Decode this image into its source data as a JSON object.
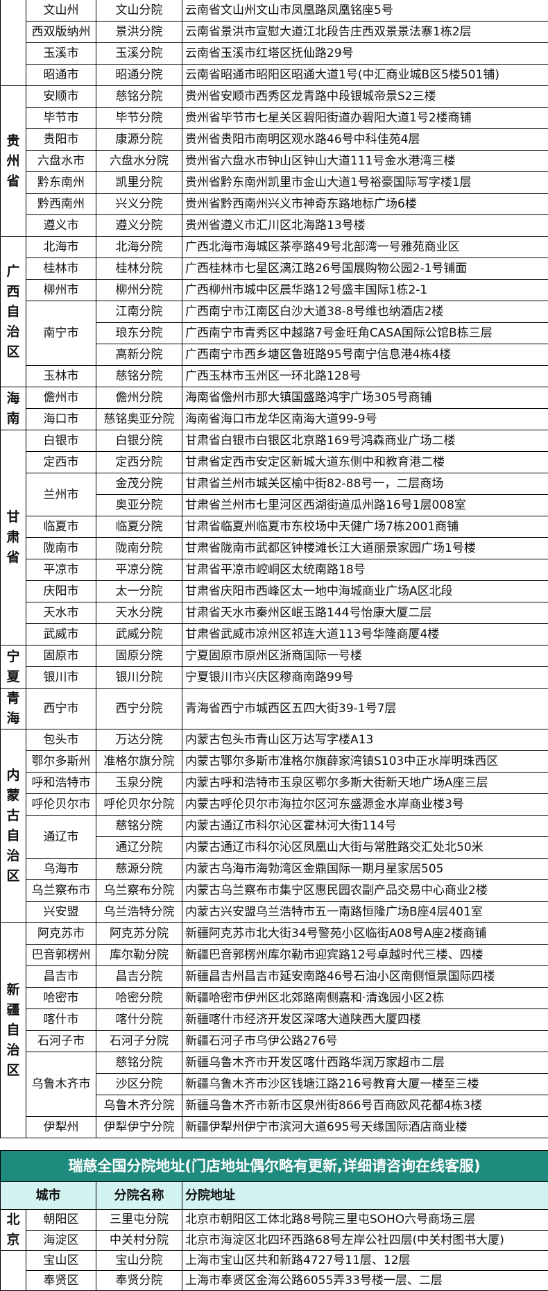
{
  "table1": {
    "sections": [
      {
        "province": "",
        "groups": [
          {
            "city": "文山州",
            "branches": [
              {
                "name": "文山分院",
                "address": "云南省文山州文山市凤凰路凤凰铭座5号"
              }
            ]
          },
          {
            "city": "西双版纳州",
            "branches": [
              {
                "name": "景洪分院",
                "address": "云南省景洪市宣慰大道江北段告庄西双景景法寨1栋2层"
              }
            ]
          },
          {
            "city": "玉溪市",
            "branches": [
              {
                "name": "玉溪分院",
                "address": "云南省玉溪市红塔区抚仙路29号"
              }
            ]
          },
          {
            "city": "昭通市",
            "branches": [
              {
                "name": "昭通分院",
                "address": "云南省昭通市昭阳区昭通大道1号(中汇商业城B区5楼501铺)"
              }
            ]
          }
        ]
      },
      {
        "province": "贵州省",
        "groups": [
          {
            "city": "安顺市",
            "branches": [
              {
                "name": "慈铭分院",
                "address": "贵州省安顺市西秀区龙青路中段银城帝景S2三楼"
              }
            ]
          },
          {
            "city": "毕节市",
            "branches": [
              {
                "name": "毕节分院",
                "address": "贵州省毕节市七星关区碧阳街道办碧阳大道1号2楼商铺"
              }
            ]
          },
          {
            "city": "贵阳市",
            "branches": [
              {
                "name": "康源分院",
                "address": "贵州省贵阳市南明区观水路46号中科佳苑4层"
              }
            ]
          },
          {
            "city": "六盘水市",
            "branches": [
              {
                "name": "六盘水分院",
                "address": "贵州省六盘水市钟山区钟山大道111号金水港湾三楼"
              }
            ]
          },
          {
            "city": "黔东南州",
            "branches": [
              {
                "name": "凯里分院",
                "address": "贵州省黔东南州凯里市金山大道1号裕豪国际写字楼1层"
              }
            ]
          },
          {
            "city": "黔西南州",
            "branches": [
              {
                "name": "兴义分院",
                "address": "贵州省黔西南州兴义市神奇东路地标广场6楼"
              }
            ]
          },
          {
            "city": "遵义市",
            "branches": [
              {
                "name": "遵义分院",
                "address": "贵州省遵义市汇川区北海路13号楼"
              }
            ]
          }
        ]
      },
      {
        "province": "广西自治区",
        "groups": [
          {
            "city": "北海市",
            "branches": [
              {
                "name": "北海分院",
                "address": "广西北海市海城区茶亭路49号北部湾一号雅苑商业区"
              }
            ]
          },
          {
            "city": "桂林市",
            "branches": [
              {
                "name": "桂林分院",
                "address": "广西桂林市七星区漓江路26号国展购物公园2-1号铺面"
              }
            ]
          },
          {
            "city": "柳州市",
            "branches": [
              {
                "name": "柳州分院",
                "address": "广西柳州市城中区晨华路12号盛丰国际1栋2-1"
              }
            ]
          },
          {
            "city": "南宁市",
            "branches": [
              {
                "name": "江南分院",
                "address": "广西南宁市江南区白沙大道38-8号维也纳酒店2楼"
              },
              {
                "name": "琅东分院",
                "address": "广西南宁市青秀区中越路7号金旺角CASA国际公馆B栋三层"
              },
              {
                "name": "高新分院",
                "address": "广西南宁市西乡塘区鲁班路95号南宁信息港4栋4楼"
              }
            ]
          },
          {
            "city": "玉林市",
            "branches": [
              {
                "name": "慈铭分院",
                "address": "广西玉林市玉州区一环北路128号"
              }
            ]
          }
        ]
      },
      {
        "province": "海南",
        "groups": [
          {
            "city": "儋州市",
            "branches": [
              {
                "name": "儋州分院",
                "address": "海南省儋州市那大镇国盛路鸿宇广场305号商铺"
              }
            ]
          },
          {
            "city": "海口市",
            "branches": [
              {
                "name": "慈铭奥亚分院",
                "address": "海南省海口市龙华区南海大道99-9号"
              }
            ]
          }
        ]
      },
      {
        "province": "甘肃省",
        "groups": [
          {
            "city": "白银市",
            "branches": [
              {
                "name": "白银分院",
                "address": "甘肃省白银市白银区北京路169号鸿森商业广场二楼"
              }
            ]
          },
          {
            "city": "定西市",
            "branches": [
              {
                "name": "定西分院",
                "address": "甘肃省定西市安定区新城大道东侧中和教育港二楼"
              }
            ]
          },
          {
            "city": "兰州市",
            "branches": [
              {
                "name": "金茂分院",
                "address": "甘肃省兰州市城关区榆中街82-88号一，二层商场"
              },
              {
                "name": "奥亚分院",
                "address": "甘肃省兰州市七里河区西湖街道瓜州路16号1层008室"
              }
            ]
          },
          {
            "city": "临夏市",
            "branches": [
              {
                "name": "临夏分院",
                "address": "甘肃省临夏州临夏市东校场中天健广场7栋2001商铺"
              }
            ]
          },
          {
            "city": "陇南市",
            "branches": [
              {
                "name": "陇南分院",
                "address": "甘肃省陇南市武都区钟楼滩长江大道丽景家园广场1号楼"
              }
            ]
          },
          {
            "city": "平凉市",
            "branches": [
              {
                "name": "平凉分院",
                "address": "甘肃省平凉市崆峒区太统南路18号"
              }
            ]
          },
          {
            "city": "庆阳市",
            "branches": [
              {
                "name": "太一分院",
                "address": "甘肃省庆阳市西峰区太一地中海城商业广场A区北段"
              }
            ]
          },
          {
            "city": "天水市",
            "branches": [
              {
                "name": "天水分院",
                "address": "甘肃省天水市秦州区岷玉路144号怡康大厦二层"
              }
            ]
          },
          {
            "city": "武威市",
            "branches": [
              {
                "name": "武威分院",
                "address": "甘肃省武威市凉州区祁连大道113号华隆商厦4楼"
              }
            ]
          }
        ]
      },
      {
        "province": "宁夏",
        "groups": [
          {
            "city": "固原市",
            "branches": [
              {
                "name": "固原分院",
                "address": "宁夏固原市原州区浙商国际一号楼"
              }
            ]
          },
          {
            "city": "银川市",
            "branches": [
              {
                "name": "银川分院",
                "address": "宁夏银川市兴庆区穆商南路99号"
              }
            ]
          }
        ]
      },
      {
        "province": "青海",
        "tall": true,
        "groups": [
          {
            "city": "西宁市",
            "branches": [
              {
                "name": "西宁分院",
                "address": "青海省西宁市城西区五四大街39-1号7层"
              }
            ]
          }
        ]
      },
      {
        "province": "内蒙古自治区",
        "groups": [
          {
            "city": "包头市",
            "branches": [
              {
                "name": "万达分院",
                "address": "内蒙古包头市青山区万达写字楼A13"
              }
            ]
          },
          {
            "city": "鄂尔多斯州",
            "branches": [
              {
                "name": "准格尔旗分院",
                "address": "内蒙古鄂尔多斯市准格尔旗薛家湾镇S103中正水岸明珠西区"
              }
            ]
          },
          {
            "city": "呼和浩特市",
            "branches": [
              {
                "name": "玉泉分院",
                "address": "内蒙古呼和浩特市玉泉区鄂尔多斯大街新天地广场A座三层"
              }
            ]
          },
          {
            "city": "呼伦贝尔市",
            "branches": [
              {
                "name": "呼伦贝尔分院",
                "address": "内蒙古呼伦贝尔市海拉尔区河东盛源金水岸商业楼3号"
              }
            ]
          },
          {
            "city": "通辽市",
            "branches": [
              {
                "name": "慈铭分院",
                "address": "内蒙古通辽市科尔沁区霍林河大街114号"
              },
              {
                "name": "通辽分院",
                "address": "内蒙古通辽市科尔沁区凤凰山大街与常胜路交汇处北50米"
              }
            ]
          },
          {
            "city": "乌海市",
            "branches": [
              {
                "name": "慈源分院",
                "address": "内蒙古乌海市海勃湾区金鼎国际一期月星家居505"
              }
            ]
          },
          {
            "city": "乌兰察布市",
            "branches": [
              {
                "name": "乌兰察布分院",
                "address": "内蒙古乌兰察布市集宁区惠民园农副产品交易中心商业2楼"
              }
            ]
          },
          {
            "city": "兴安盟",
            "branches": [
              {
                "name": "乌兰浩特分院",
                "address": "内蒙古兴安盟乌兰浩特市五一南路恒隆广场B座4层401室"
              }
            ]
          }
        ]
      },
      {
        "province": "新疆自治区",
        "groups": [
          {
            "city": "阿克苏市",
            "branches": [
              {
                "name": "阿克苏分院",
                "address": "新疆阿克苏市北大街34号警苑小区临街A08号A座2楼商铺"
              }
            ]
          },
          {
            "city": "巴音郭楞州",
            "branches": [
              {
                "name": "库尔勒分院",
                "address": "新疆巴音郭楞州库尔勒市迎宾路12号卓越时代三楼、四楼"
              }
            ]
          },
          {
            "city": "昌吉市",
            "branches": [
              {
                "name": "昌吉分院",
                "address": "新疆昌吉州昌吉市延安南路46号石油小区南侧恒景国际四楼"
              }
            ]
          },
          {
            "city": "哈密市",
            "branches": [
              {
                "name": "哈密分院",
                "address": "新疆哈密市伊州区北郊路南侧嘉和·清逸园小区2栋"
              }
            ]
          },
          {
            "city": "喀什市",
            "branches": [
              {
                "name": "喀什分院",
                "address": "新疆喀什市经济开发区深喀大道陕西大厦四楼"
              }
            ]
          },
          {
            "city": "石河子市",
            "branches": [
              {
                "name": "石河子分院",
                "address": "新疆石河子市乌伊公路276号"
              }
            ]
          },
          {
            "city": "乌鲁木齐市",
            "branches": [
              {
                "name": "慈铭分院",
                "address": "新疆乌鲁木齐市开发区喀什西路华润万家超市二层"
              },
              {
                "name": "沙区分院",
                "address": "新疆乌鲁木齐市沙区钱塘江路216号教育大厦一楼至三楼"
              },
              {
                "name": "乌鲁木齐分院",
                "address": "新疆乌鲁木齐市新市区泉州街866号百商欧风花都4栋3楼"
              }
            ]
          },
          {
            "city": "伊犁州",
            "branches": [
              {
                "name": "伊犁伊宁分院",
                "address": "新疆伊犁州伊宁市滨河大道695号天缘国际酒店商业楼"
              }
            ]
          }
        ]
      }
    ]
  },
  "table2": {
    "title": "瑞慈全国分院地址(门店地址偶尔略有更新,详细请咨询在线客服)",
    "headers": {
      "city": "城市",
      "branch": "分院名称",
      "address": "分院地址"
    },
    "colors": {
      "title_bg": "#1f8a7e",
      "header_bg": "#d3f3f1"
    },
    "sections": [
      {
        "province": "北京",
        "groups": [
          {
            "city": "朝阳区",
            "branches": [
              {
                "name": "三里屯分院",
                "address": "北京市朝阳区工体北路8号院三里屯SOHO六号商场三层"
              }
            ]
          },
          {
            "city": "海淀区",
            "branches": [
              {
                "name": "中关村分院",
                "address": "北京市海淀区北四环西路68号左岸公社四层(中关村图书大厦)"
              }
            ]
          }
        ]
      },
      {
        "province": "",
        "groups": [
          {
            "city": "宝山区",
            "branches": [
              {
                "name": "宝山分院",
                "address": "上海市宝山区共和新路4727号11层、12层"
              }
            ]
          },
          {
            "city": "奉贤区",
            "branches": [
              {
                "name": "奉贤分院",
                "address": "上海市奉贤区金海公路6055弄33号楼一层、二层"
              }
            ]
          }
        ]
      }
    ]
  }
}
